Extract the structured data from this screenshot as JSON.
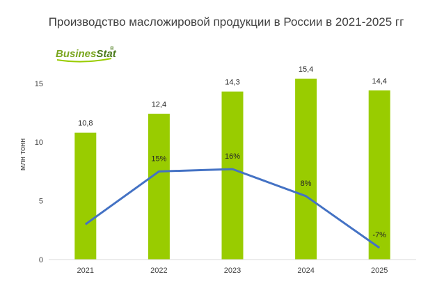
{
  "chart_data": {
    "type": "bar",
    "title": "Производство масложировой продукции в России в 2021-2025 гг",
    "ylabel": "млн тонн",
    "categories": [
      "2021",
      "2022",
      "2023",
      "2024",
      "2025"
    ],
    "series": [
      {
        "values": [
          10.8,
          12.4,
          14.3,
          15.4,
          14.4
        ],
        "labels": [
          "10,8",
          "12,4",
          "14,3",
          "15,4",
          "14,4"
        ]
      }
    ],
    "growth": {
      "labels": [
        "",
        "15%",
        "16%",
        "8%",
        "-7%"
      ],
      "values": [
        3.0,
        7.5,
        7.7,
        5.4,
        1.0
      ]
    },
    "yticks": [
      "0",
      "5",
      "10",
      "15"
    ],
    "ylim": [
      0,
      17
    ],
    "grid": false,
    "legend": "none",
    "colors": {
      "bar": "#99cc00",
      "line": "#4472c4",
      "axis": "#d9d9d9"
    }
  },
  "logo": {
    "text_a": "Busines",
    "text_b": "Stat",
    "mark": "®"
  }
}
